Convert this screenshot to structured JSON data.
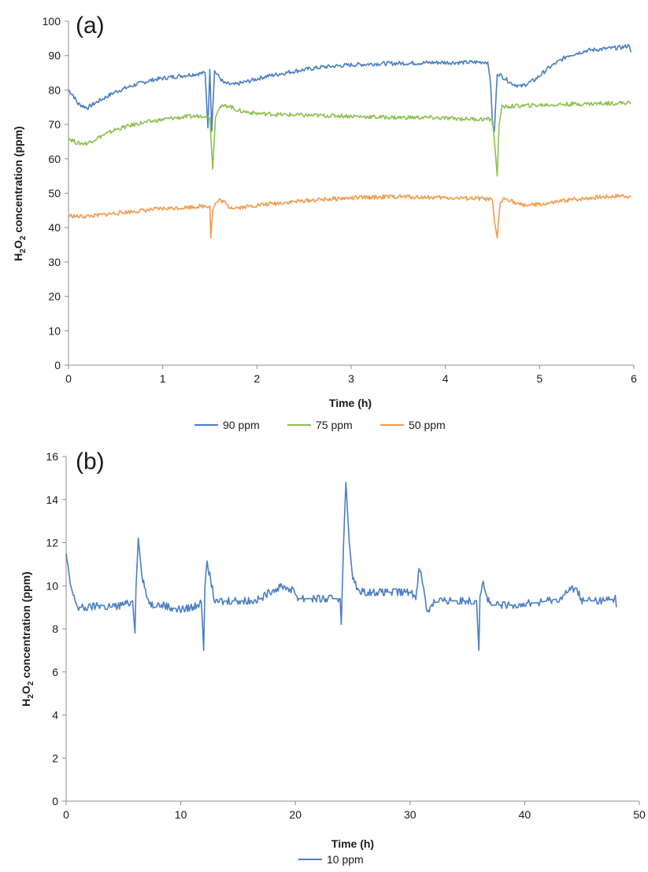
{
  "chart_data": [
    {
      "type": "line",
      "panel_label": "(a)",
      "xlabel": "Time (h)",
      "ylabel": {
        "prefix": "H",
        "sub1": "2",
        "mid": "O",
        "sub2": "2",
        "suffix": " concentration (ppm)"
      },
      "xlim": [
        0,
        6
      ],
      "ylim": [
        0,
        100
      ],
      "xticks": [
        0,
        1,
        2,
        3,
        4,
        5,
        6
      ],
      "yticks": [
        0,
        10,
        20,
        30,
        40,
        50,
        60,
        70,
        80,
        90,
        100
      ],
      "grid": false,
      "legend_position": "bottom",
      "series": [
        {
          "name": "90 ppm",
          "color": "#4a7ec4",
          "points": [
            [
              0,
              80
            ],
            [
              0.05,
              78.5
            ],
            [
              0.1,
              76
            ],
            [
              0.2,
              74.8
            ],
            [
              0.3,
              76.5
            ],
            [
              0.5,
              79.5
            ],
            [
              0.7,
              81.5
            ],
            [
              0.9,
              83
            ],
            [
              1.1,
              83.8
            ],
            [
              1.3,
              84.5
            ],
            [
              1.45,
              85
            ],
            [
              1.48,
              69
            ],
            [
              1.5,
              86
            ],
            [
              1.52,
              68
            ],
            [
              1.55,
              85.5
            ],
            [
              1.65,
              82
            ],
            [
              1.75,
              81.5
            ],
            [
              1.9,
              82.5
            ],
            [
              2.1,
              84
            ],
            [
              2.4,
              85.5
            ],
            [
              2.7,
              86.7
            ],
            [
              3.0,
              87.3
            ],
            [
              3.3,
              87.7
            ],
            [
              3.6,
              87.8
            ],
            [
              3.9,
              88
            ],
            [
              4.2,
              88
            ],
            [
              4.45,
              88.2
            ],
            [
              4.48,
              82
            ],
            [
              4.5,
              70
            ],
            [
              4.52,
              68
            ],
            [
              4.55,
              85
            ],
            [
              4.6,
              84
            ],
            [
              4.7,
              82
            ],
            [
              4.8,
              81
            ],
            [
              4.95,
              83
            ],
            [
              5.1,
              86.5
            ],
            [
              5.3,
              90
            ],
            [
              5.5,
              91.5
            ],
            [
              5.7,
              92
            ],
            [
              5.9,
              92.5
            ],
            [
              5.95,
              93
            ],
            [
              5.97,
              91
            ]
          ]
        },
        {
          "name": "75 ppm",
          "color": "#8dc04f",
          "points": [
            [
              0,
              66
            ],
            [
              0.1,
              64.5
            ],
            [
              0.2,
              64.5
            ],
            [
              0.3,
              66
            ],
            [
              0.5,
              68.5
            ],
            [
              0.7,
              70
            ],
            [
              0.9,
              71
            ],
            [
              1.1,
              71.8
            ],
            [
              1.3,
              72.3
            ],
            [
              1.45,
              72.6
            ],
            [
              1.5,
              72
            ],
            [
              1.53,
              57
            ],
            [
              1.56,
              72
            ],
            [
              1.6,
              75
            ],
            [
              1.7,
              75.5
            ],
            [
              1.8,
              74
            ],
            [
              2.0,
              73.2
            ],
            [
              2.3,
              72.8
            ],
            [
              2.6,
              72.6
            ],
            [
              2.9,
              72.5
            ],
            [
              3.2,
              72.2
            ],
            [
              3.5,
              72
            ],
            [
              3.8,
              72
            ],
            [
              4.1,
              71.7
            ],
            [
              4.4,
              71.5
            ],
            [
              4.5,
              71.5
            ],
            [
              4.53,
              62
            ],
            [
              4.55,
              55
            ],
            [
              4.57,
              70
            ],
            [
              4.6,
              75
            ],
            [
              4.7,
              75.3
            ],
            [
              4.9,
              75.5
            ],
            [
              5.2,
              75.8
            ],
            [
              5.5,
              76
            ],
            [
              5.8,
              76.2
            ],
            [
              5.97,
              76.3
            ]
          ]
        },
        {
          "name": "50 ppm",
          "color": "#f39a4c",
          "points": [
            [
              0,
              43.5
            ],
            [
              0.1,
              43.2
            ],
            [
              0.3,
              43.5
            ],
            [
              0.5,
              44.2
            ],
            [
              0.8,
              45
            ],
            [
              1.0,
              45.5
            ],
            [
              1.2,
              45.8
            ],
            [
              1.4,
              46.2
            ],
            [
              1.5,
              46.3
            ],
            [
              1.51,
              37
            ],
            [
              1.53,
              45
            ],
            [
              1.56,
              47
            ],
            [
              1.6,
              48
            ],
            [
              1.65,
              47.5
            ],
            [
              1.7,
              46
            ],
            [
              1.8,
              45.8
            ],
            [
              2.0,
              46.5
            ],
            [
              2.3,
              47.3
            ],
            [
              2.6,
              48
            ],
            [
              2.9,
              48.5
            ],
            [
              3.2,
              48.8
            ],
            [
              3.5,
              49
            ],
            [
              3.8,
              48.8
            ],
            [
              4.1,
              48.6
            ],
            [
              4.4,
              48.4
            ],
            [
              4.5,
              48
            ],
            [
              4.52,
              42
            ],
            [
              4.55,
              37
            ],
            [
              4.58,
              47
            ],
            [
              4.63,
              48.5
            ],
            [
              4.7,
              48
            ],
            [
              4.75,
              46.8
            ],
            [
              4.9,
              46.5
            ],
            [
              5.1,
              47
            ],
            [
              5.3,
              48
            ],
            [
              5.6,
              48.8
            ],
            [
              5.9,
              49.3
            ],
            [
              5.97,
              49
            ]
          ]
        }
      ]
    },
    {
      "type": "line",
      "panel_label": "(b)",
      "xlabel": "Time (h)",
      "ylabel": {
        "prefix": "H",
        "sub1": "2",
        "mid": "O",
        "sub2": "2",
        "suffix": " concentration (ppm)"
      },
      "xlim": [
        0,
        50
      ],
      "ylim": [
        0,
        16
      ],
      "xticks": [
        0,
        10,
        20,
        30,
        40,
        50
      ],
      "yticks": [
        0,
        2,
        4,
        6,
        8,
        10,
        12,
        14,
        16
      ],
      "grid": false,
      "legend_position": "bottom",
      "series": [
        {
          "name": "10 ppm",
          "color": "#4a7ec4",
          "points": [
            [
              0,
              11.5
            ],
            [
              0.3,
              10.2
            ],
            [
              0.7,
              9.4
            ],
            [
              1,
              9.0
            ],
            [
              2,
              9.0
            ],
            [
              3,
              9.1
            ],
            [
              4,
              9.0
            ],
            [
              5,
              9.1
            ],
            [
              5.8,
              9.3
            ],
            [
              6.0,
              7.8
            ],
            [
              6.1,
              10
            ],
            [
              6.3,
              12.2
            ],
            [
              6.6,
              10.5
            ],
            [
              7,
              9.5
            ],
            [
              7.5,
              9.1
            ],
            [
              8,
              9.2
            ],
            [
              9,
              9.0
            ],
            [
              10,
              8.9
            ],
            [
              11,
              9.0
            ],
            [
              11.8,
              9.2
            ],
            [
              12.0,
              7.0
            ],
            [
              12.1,
              10
            ],
            [
              12.3,
              11.0
            ],
            [
              12.6,
              10.3
            ],
            [
              13,
              9.2
            ],
            [
              14,
              9.3
            ],
            [
              15,
              9.3
            ],
            [
              16,
              9.3
            ],
            [
              17,
              9.4
            ],
            [
              18,
              9.8
            ],
            [
              19,
              10.0
            ],
            [
              19.7,
              9.8
            ],
            [
              20.3,
              9.4
            ],
            [
              21,
              9.4
            ],
            [
              22,
              9.4
            ],
            [
              23,
              9.4
            ],
            [
              23.9,
              9.4
            ],
            [
              24.0,
              8.2
            ],
            [
              24.2,
              12
            ],
            [
              24.4,
              14.8
            ],
            [
              24.7,
              12
            ],
            [
              25,
              10.3
            ],
            [
              25.5,
              9.8
            ],
            [
              26,
              9.7
            ],
            [
              27,
              9.7
            ],
            [
              28,
              9.7
            ],
            [
              29,
              9.7
            ],
            [
              30,
              9.7
            ],
            [
              30.5,
              9.5
            ],
            [
              30.8,
              10.8
            ],
            [
              31.1,
              10.2
            ],
            [
              31.5,
              8.8
            ],
            [
              32,
              9.2
            ],
            [
              33,
              9.3
            ],
            [
              34,
              9.3
            ],
            [
              35,
              9.3
            ],
            [
              35.8,
              9.3
            ],
            [
              36.0,
              7.0
            ],
            [
              36.1,
              9.5
            ],
            [
              36.3,
              10.2
            ],
            [
              36.7,
              9.5
            ],
            [
              37,
              9.1
            ],
            [
              38,
              9.1
            ],
            [
              39,
              9.1
            ],
            [
              40,
              9.2
            ],
            [
              41,
              9.2
            ],
            [
              42,
              9.3
            ],
            [
              43,
              9.4
            ],
            [
              44,
              9.8
            ],
            [
              44.5,
              9.9
            ],
            [
              45,
              9.3
            ],
            [
              46,
              9.3
            ],
            [
              47,
              9.3
            ],
            [
              47.9,
              9.4
            ],
            [
              48,
              9.0
            ]
          ]
        }
      ]
    }
  ]
}
